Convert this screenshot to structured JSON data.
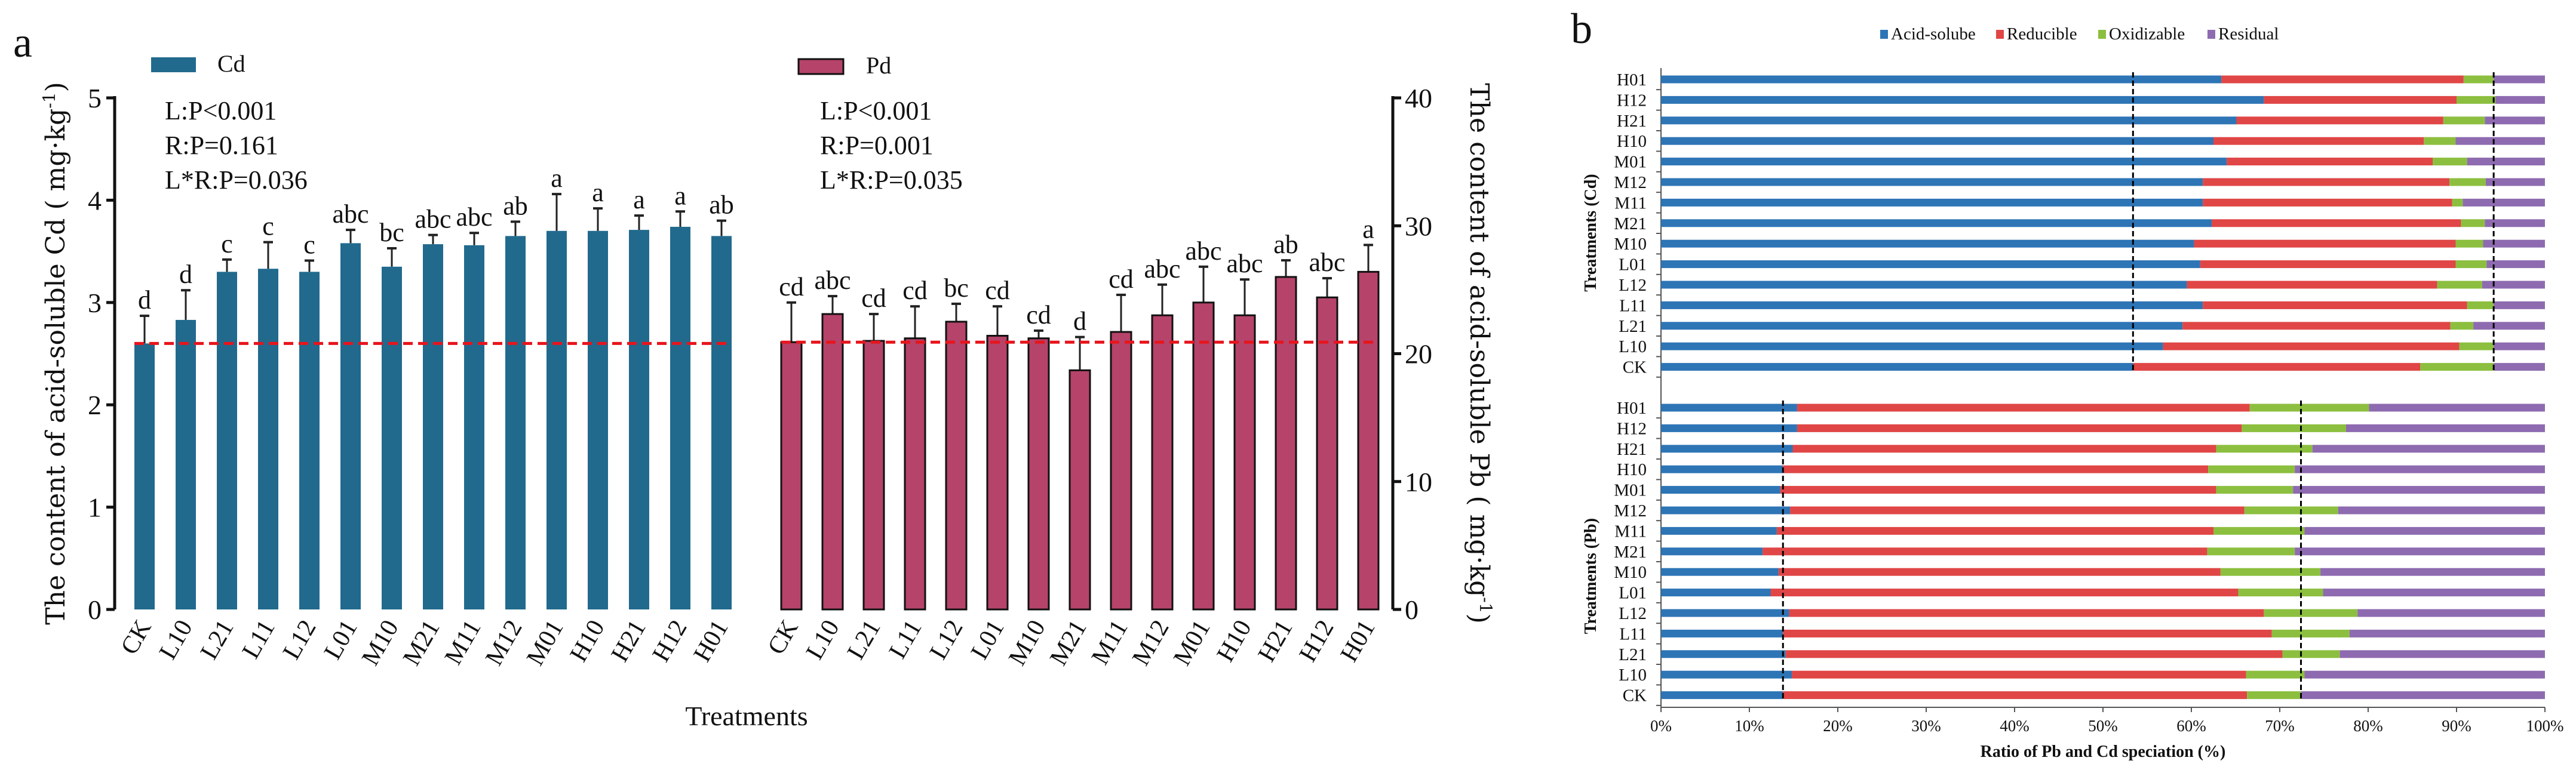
{
  "colors": {
    "cd": "#216a8d",
    "pb": "#b5436a",
    "ref_line": "#e8141c",
    "acid": "#2e75b6",
    "reducible": "#e04646",
    "oxidizable": "#8cbf3f",
    "residual": "#8e6bb0"
  },
  "chart_data": [
    {
      "type": "bar",
      "panel_label": "a",
      "categories": [
        "CK",
        "L10",
        "L21",
        "L11",
        "L12",
        "L01",
        "M10",
        "M21",
        "M11",
        "M12",
        "M01",
        "H10",
        "H21",
        "H12",
        "H01"
      ],
      "xlabel": "Treatments",
      "series": [
        {
          "name": "Cd",
          "axis": "left",
          "ylabel": "The content of acid-soluble Cd ( mg·kg",
          "ylabel_sup": "-1",
          "ylabel_end": ")",
          "ylim": [
            0,
            5
          ],
          "yticks": [
            0,
            1,
            2,
            3,
            4,
            5
          ],
          "values": [
            2.6,
            2.83,
            3.3,
            3.33,
            3.3,
            3.58,
            3.35,
            3.57,
            3.56,
            3.65,
            3.7,
            3.7,
            3.71,
            3.74,
            3.65
          ],
          "errors": [
            0.27,
            0.29,
            0.12,
            0.26,
            0.11,
            0.13,
            0.18,
            0.09,
            0.12,
            0.14,
            0.36,
            0.22,
            0.14,
            0.15,
            0.15
          ],
          "letters": [
            "d",
            "d",
            "c",
            "c",
            "c",
            "abc",
            "bc",
            "abc",
            "abc",
            "ab",
            "a",
            "a",
            "a",
            "a",
            "ab"
          ],
          "reference_line": 2.6,
          "stats": [
            "L:P<0.001",
            "R:P=0.161",
            "L*R:P=0.036"
          ]
        },
        {
          "name": "Pd",
          "axis": "right",
          "ylabel": "The content of acid-soluble Pb ( mg·kg",
          "ylabel_sup": "-1",
          "ylabel_end": ")",
          "ylim": [
            0,
            40
          ],
          "yticks": [
            0,
            10,
            20,
            30,
            40
          ],
          "values": [
            20.9,
            23.1,
            21.0,
            21.2,
            22.5,
            21.4,
            21.2,
            18.7,
            21.7,
            23.0,
            24.0,
            23.0,
            26.0,
            24.4,
            26.4
          ],
          "errors": [
            3.1,
            1.4,
            2.1,
            2.5,
            1.4,
            2.3,
            0.6,
            2.6,
            2.9,
            2.4,
            2.8,
            2.8,
            1.3,
            1.5,
            2.1
          ],
          "letters": [
            "cd",
            "abc",
            "cd",
            "cd",
            "bc",
            "cd",
            "cd",
            "d",
            "cd",
            "abc",
            "abc",
            "abc",
            "ab",
            "abc",
            "a"
          ],
          "reference_line": 20.9,
          "stats": [
            "L:P<0.001",
            "R:P=0.001",
            "L*R:P=0.035"
          ]
        }
      ]
    },
    {
      "type": "bar",
      "orientation": "horizontal-stacked-100",
      "panel_label": "b",
      "legend": [
        "Acid-solube",
        "Reducible",
        "Oxidizable",
        "Residual"
      ],
      "legend_position": "top",
      "xlabel": "Ratio of Pb and Cd speciation (%)",
      "xticks": [
        "0%",
        "10%",
        "20%",
        "30%",
        "40%",
        "50%",
        "60%",
        "70%",
        "80%",
        "90%",
        "100%"
      ],
      "xlim": [
        0,
        100
      ],
      "groups": [
        {
          "ylabel": "Treatments (Cd)",
          "categories": [
            "H01",
            "H12",
            "H21",
            "H10",
            "M01",
            "M12",
            "M11",
            "M21",
            "M10",
            "L01",
            "L12",
            "L11",
            "L21",
            "L10",
            "CK"
          ],
          "segments": [
            [
              63.4,
              27.4,
              3.4,
              5.8
            ],
            [
              68.2,
              21.8,
              4.4,
              5.6
            ],
            [
              65.1,
              23.4,
              4.7,
              6.8
            ],
            [
              62.5,
              23.8,
              3.6,
              10.1
            ],
            [
              64.0,
              23.3,
              3.9,
              8.8
            ],
            [
              61.3,
              27.9,
              4.1,
              6.7
            ],
            [
              61.3,
              28.2,
              1.2,
              9.3
            ],
            [
              62.3,
              28.2,
              2.7,
              6.8
            ],
            [
              60.3,
              29.6,
              3.1,
              7.0
            ],
            [
              61.0,
              28.9,
              3.5,
              6.6
            ],
            [
              59.5,
              28.3,
              5.1,
              7.1
            ],
            [
              61.3,
              29.9,
              3.0,
              5.8
            ],
            [
              59.0,
              30.3,
              2.6,
              8.1
            ],
            [
              56.8,
              33.5,
              3.9,
              5.8
            ],
            [
              53.4,
              32.5,
              8.3,
              5.8
            ]
          ],
          "reference_lines": [
            53.4,
            94.2
          ]
        },
        {
          "ylabel": "Treatments (Pb)",
          "categories": [
            "H01",
            "H12",
            "H21",
            "H10",
            "M01",
            "M12",
            "M11",
            "M21",
            "M10",
            "L01",
            "L12",
            "L11",
            "L21",
            "L10",
            "CK"
          ],
          "segments": [
            [
              15.4,
              51.2,
              13.5,
              19.9
            ],
            [
              15.4,
              50.3,
              11.8,
              22.5
            ],
            [
              14.9,
              47.9,
              10.9,
              26.3
            ],
            [
              13.8,
              48.1,
              9.8,
              28.3
            ],
            [
              13.5,
              49.3,
              8.7,
              28.5
            ],
            [
              14.6,
              51.4,
              10.6,
              23.4
            ],
            [
              13.1,
              49.4,
              10.3,
              27.2
            ],
            [
              11.5,
              50.3,
              9.9,
              28.3
            ],
            [
              13.3,
              50.0,
              11.3,
              25.4
            ],
            [
              12.4,
              52.9,
              9.6,
              25.1
            ],
            [
              14.5,
              53.7,
              10.6,
              21.2
            ],
            [
              13.8,
              55.3,
              8.8,
              22.1
            ],
            [
              14.1,
              56.2,
              6.5,
              23.2
            ],
            [
              14.8,
              51.4,
              6.6,
              27.2
            ],
            [
              13.8,
              52.5,
              6.1,
              27.6
            ]
          ],
          "reference_lines": [
            13.8,
            72.4
          ]
        }
      ]
    }
  ]
}
